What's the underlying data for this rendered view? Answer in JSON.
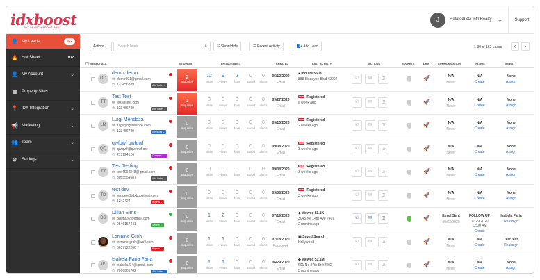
{
  "brand": {
    "logo": "idxboost",
    "tagline": "IDX SEARCH FRONT BUILT"
  },
  "header": {
    "user_initial": "J",
    "user_name": "RelatedISG Int'l Realty",
    "support_label": "Support"
  },
  "sidebar": {
    "items": [
      {
        "label": "My Leads",
        "count": "162",
        "icon": "user-icon"
      },
      {
        "label": "Hot Sheet",
        "count": "102",
        "icon": "flame-icon"
      },
      {
        "label": "My Account",
        "icon": "person-icon"
      },
      {
        "label": "Property Sites",
        "icon": "grid-icon"
      },
      {
        "label": "IDX Integration",
        "icon": "pin-icon"
      },
      {
        "label": "Marketing",
        "icon": "megaphone-icon"
      },
      {
        "label": "Team",
        "icon": "team-icon"
      },
      {
        "label": "Settings",
        "icon": "gear-icon"
      }
    ]
  },
  "toolbar": {
    "actions_label": "Actions",
    "search_placeholder": "Search leads",
    "show_hide_label": "Show/Hide",
    "recent_activity_label": "Recent Activity",
    "add_lead_label": "Add Lead",
    "pager_text": "1-30 of 162 Leads"
  },
  "table": {
    "headers": {
      "select_all": "SELECT ALL",
      "inquiries": "INQUIRIES",
      "engagement": "ENGAGEMENT",
      "created": "CREATED",
      "last_activity": "LAST ACTIVITY",
      "actions": "ACTIONS",
      "buckets": "BUCKETS",
      "drip": "DRIP",
      "communication": "COMMUNICATION",
      "todos": "TO-DOS",
      "agent": "AGENT"
    },
    "labels": {
      "inquiries": "Inquiries",
      "visits": "visits",
      "views": "views",
      "favs": "favs",
      "saved": "saved",
      "alerts": "alerts"
    },
    "rows": [
      {
        "initials": "DD",
        "name": "demo demo",
        "email": "demo001@gmail.com",
        "phone": "123456789",
        "tag": "Add Label",
        "tag_color": "#555555",
        "dot": "red",
        "inq": "2",
        "inq_style": "red",
        "visits": "12",
        "views": "9",
        "favs": "2",
        "saved": "0",
        "alerts": "0",
        "eng_active": true,
        "created": "05/12/2020",
        "source": "Email",
        "la_title": "Inquire 550K",
        "la_sub": "888 Biscayne Blvd #2902",
        "la_new": false,
        "la_icon": "●",
        "comm": "N/A",
        "comm_sub": "Never",
        "todo": "N/A",
        "todo_link": "Create",
        "agent": "None",
        "agent_link": "Assign",
        "bucket": false,
        "act_active": false
      },
      {
        "initials": "TT",
        "name": "Test Test",
        "email": "test@test.com",
        "phone": "123456789",
        "tag": "Add Label",
        "tag_color": "#555555",
        "dot": "red",
        "inq": "1",
        "inq_style": "red",
        "visits": "0",
        "views": "0",
        "favs": "0",
        "saved": "0",
        "alerts": "0",
        "eng_active": false,
        "created": "09/27/2020",
        "source": "Email",
        "la_title": "Registered",
        "la_sub": "a week ago",
        "la_new": true,
        "comm": "N/A",
        "comm_sub": "Never",
        "todo": "N/A",
        "todo_link": "Create",
        "agent": "None",
        "agent_link": "Assign",
        "bucket": false,
        "act_active": false
      },
      {
        "initials": "LM",
        "name": "Luigi Mendoza",
        "email": "luigi@dgtalliance.com",
        "phone": "123456789",
        "tag": "Investors",
        "tag_color": "#2d6bb5",
        "dot": "red",
        "inq": "0",
        "inq_style": "grey",
        "visits": "0",
        "views": "0",
        "favs": "0",
        "saved": "0",
        "alerts": "0",
        "eng_active": false,
        "created": "09/15/2020",
        "source": "Email",
        "la_title": "Registered",
        "la_sub": "2 weeks ago",
        "la_new": true,
        "comm": "N/A",
        "comm_sub": "Never",
        "todo": "N/A",
        "todo_link": "Create",
        "agent": "None",
        "agent_link": "Assign",
        "bucket": false,
        "act_active": false
      },
      {
        "initials": "QQ",
        "name": "qwfqwf qwfqwf",
        "email": "qwfqwf@qwfqwf.co",
        "phone": "213124124",
        "tag": "Commer...",
        "tag_color": "#b52dd8",
        "dot": "red",
        "inq": "0",
        "inq_style": "grey",
        "visits": "0",
        "views": "0",
        "favs": "0",
        "saved": "0",
        "alerts": "0",
        "eng_active": false,
        "created": "09/08/2020",
        "source": "Email",
        "la_title": "Registered",
        "la_sub": "3 weeks ago",
        "la_new": true,
        "comm": "N/A",
        "comm_sub": "Never",
        "todo": "N/A",
        "todo_link": "Create",
        "agent": "None",
        "agent_link": "Assign",
        "bucket": false,
        "act_active": false
      },
      {
        "initials": "TT",
        "name": "Test Testing",
        "email": "test4994848@gmail.com",
        "phone": "3055554587",
        "tag": "Add Label",
        "tag_color": "#555555",
        "dot": "red",
        "inq": "0",
        "inq_style": "grey",
        "visits": "0",
        "views": "0",
        "favs": "0",
        "saved": "0",
        "alerts": "0",
        "eng_active": false,
        "created": "09/08/2020",
        "source": "Email",
        "la_title": "Registered",
        "la_sub": "3 weeks ago",
        "la_new": true,
        "comm": "N/A",
        "comm_sub": "Never",
        "todo": "N/A",
        "todo_link": "Create",
        "agent": "None",
        "agent_link": "Assign",
        "bucket": false,
        "act_active": false
      },
      {
        "initials": "TD",
        "name": "test dev",
        "email": "testdev@idxboosttest.com",
        "phone": "1242424",
        "tag": "Buyers",
        "tag_color": "#e31b23",
        "dot": "red",
        "inq": "0",
        "inq_style": "grey",
        "visits": "0",
        "views": "0",
        "favs": "0",
        "saved": "0",
        "alerts": "0",
        "eng_active": false,
        "created": "09/08/2020",
        "source": "Email",
        "la_title": "Registered",
        "la_sub": "3 weeks ago",
        "la_new": true,
        "comm": "N/A",
        "comm_sub": "Never",
        "todo": "N/A",
        "todo_link": "Create",
        "agent": "None",
        "agent_link": "Assign",
        "bucket": false,
        "act_active": false
      },
      {
        "initials": "DS",
        "name": "Dillan Sims",
        "email": "dlsims32@gmail.com",
        "phone": "9546157441",
        "tag": "Sellers",
        "tag_color": "#2fb344",
        "dot": "green",
        "inq": "0",
        "inq_style": "grey",
        "visits": "1",
        "views": "2",
        "favs": "0",
        "saved": "0",
        "alerts": "0",
        "eng_active": true,
        "created": "07/19/2020",
        "source": "Email",
        "la_title": "Viewed $1.1K",
        "la_sub": "3045 Ne 14th Ave #401",
        "la_sub2": "2 months ago",
        "la_new": false,
        "la_icon": "◆",
        "comm": "Email Sent",
        "comm_sub": "09/03/2020",
        "todo": "FOLLOW UP",
        "todo_sub": "07/29/2020 12:00 AM",
        "todo_link": "Create",
        "agent": "Isabela Faria",
        "agent_link": "Reassign",
        "bucket": true,
        "act_active": true
      },
      {
        "initials": "",
        "name": "Lorraine Groh",
        "email": "lorraine.groh@well.com",
        "phone": "3057722266",
        "tag": "Buyers",
        "tag_color": "#e31b23",
        "dot": "red",
        "inq": "0",
        "inq_style": "grey",
        "visits": "1",
        "views": "1",
        "favs": "0",
        "saved": "0",
        "alerts": "0",
        "eng_active": true,
        "created": "07/18/2020",
        "source": "Facebook",
        "la_title": "Saved Search",
        "la_sub": "Hollywood",
        "la_new": false,
        "la_icon": "▣",
        "comm": "N/A",
        "comm_sub": "Never",
        "todo": "N/A",
        "todo_link": "Create",
        "agent": "test test",
        "agent_link": "Reassign",
        "bucket": false,
        "act_active": false,
        "photo": true
      },
      {
        "initials": "IF",
        "name": "Isabela Faria Faria",
        "email": "isabela.f14@gmail.com",
        "phone": "7866061762",
        "tag": "Add Label",
        "tag_color": "#2d6bb5",
        "dot": "red",
        "inq": "0",
        "inq_style": "grey",
        "visits": "1",
        "views": "1",
        "favs": "0",
        "saved": "0",
        "alerts": "0",
        "eng_active": true,
        "created": "06/29/2020",
        "source": "Email",
        "la_title": "Viewed $1.1M",
        "la_sub": "601 Ne 27th St #2802",
        "la_sub2": "3 months ago",
        "la_new": false,
        "la_icon": "◆",
        "comm": "N/A",
        "comm_sub": "Never",
        "todo": "N/A",
        "todo_link": "Create",
        "agent": "None",
        "agent_link": "Assign",
        "bucket": false,
        "act_active": false
      }
    ]
  }
}
